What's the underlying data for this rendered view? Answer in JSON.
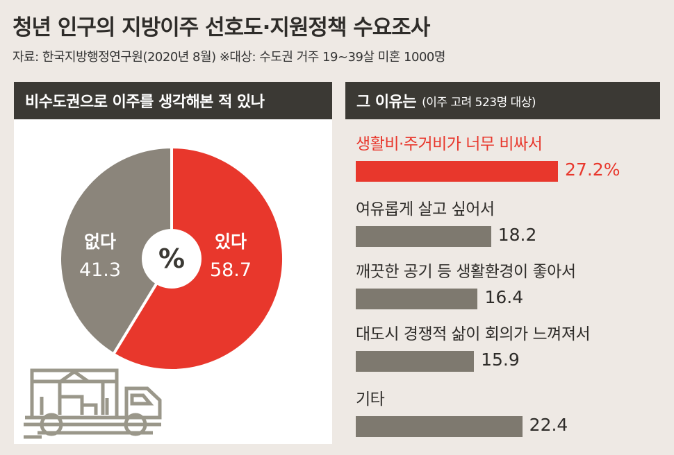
{
  "title": "청년 인구의 지방이주 선호도·지원정책 수요조사",
  "source": "자료: 한국지방행정연구원(2020년 8월)  ※대상: 수도권 거주 19~39살 미혼 1000명",
  "colors": {
    "red": "#e8372c",
    "gray": "#8b857b",
    "bar": "#7e796f"
  },
  "chart_data": [
    {
      "type": "pie",
      "title": "비수도권으로 이주를 생각해본 적 있나",
      "center_label": "%",
      "slices": [
        {
          "label": "있다",
          "value": 58.7,
          "color": "#e8372c"
        },
        {
          "label": "없다",
          "value": 41.3,
          "color": "#8b857b"
        }
      ]
    },
    {
      "type": "bar",
      "title": "그 이유는",
      "subtitle": "(이주 고려 523명 대상)",
      "categories": [
        "생활비·주거비가 너무 비싸서",
        "여유롭게 살고 싶어서",
        "깨끗한 공기 등 생활환경이 좋아서",
        "대도시 경쟁적 삶이 회의가 느껴져서",
        "기타"
      ],
      "values": [
        27.2,
        18.2,
        16.4,
        15.9,
        22.4
      ],
      "value_labels": [
        "27.2%",
        "18.2",
        "16.4",
        "15.9",
        "22.4"
      ],
      "highlight_index": 0
    }
  ]
}
